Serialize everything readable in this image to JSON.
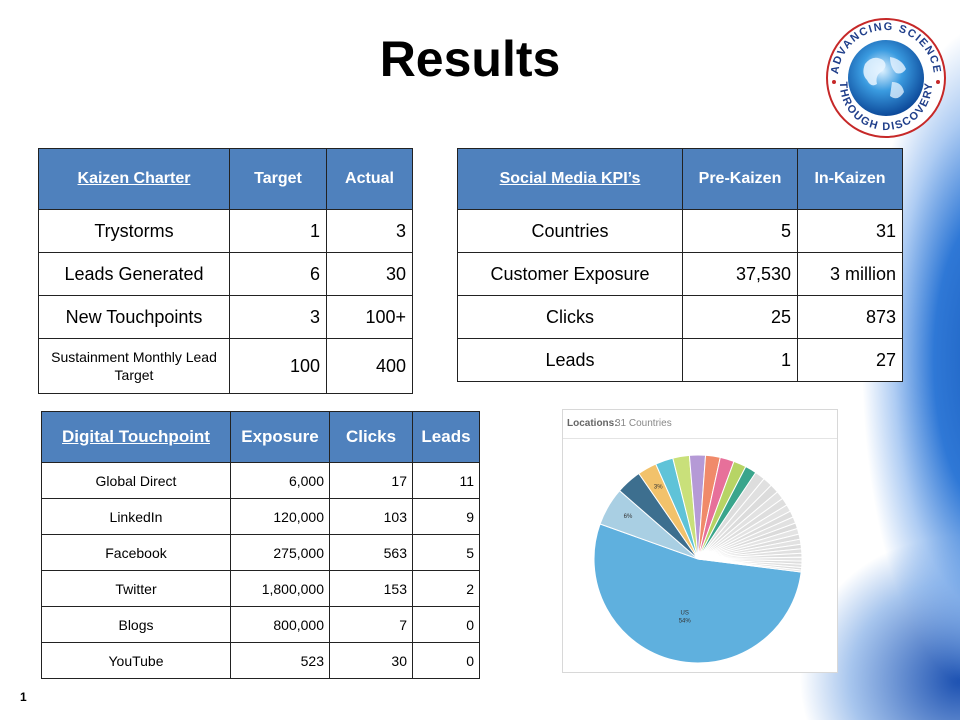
{
  "slide": {
    "title": "Results",
    "page_number": "1",
    "seal_text": "ADVANCING SCIENCE THROUGH DISCOVERY"
  },
  "kaizen_table": {
    "headers": [
      "Kaizen Charter",
      "Target",
      "Actual"
    ],
    "rows": [
      [
        "Trystorms",
        "1",
        "3"
      ],
      [
        "Leads Generated",
        "6",
        "30"
      ],
      [
        "New Touchpoints",
        "3",
        "100+"
      ],
      [
        "Sustainment Monthly Lead Target",
        "100",
        "400"
      ]
    ]
  },
  "social_table": {
    "headers": [
      "Social Media KPI’s",
      "Pre-Kaizen",
      "In-Kaizen"
    ],
    "rows": [
      [
        "Countries",
        "5",
        "31"
      ],
      [
        "Customer Exposure",
        "37,530",
        "3 million"
      ],
      [
        "Clicks",
        "25",
        "873"
      ],
      [
        "Leads",
        "1",
        "27"
      ]
    ]
  },
  "digital_table": {
    "headers": [
      "Digital Touchpoint",
      "Exposure",
      "Clicks",
      "Leads"
    ],
    "rows": [
      [
        "Global Direct",
        "6,000",
        "17",
        "11"
      ],
      [
        "LinkedIn",
        "120,000",
        "103",
        "9"
      ],
      [
        "Facebook",
        "275,000",
        "563",
        "5"
      ],
      [
        "Twitter",
        "1,800,000",
        "153",
        "2"
      ],
      [
        "Blogs",
        "800,000",
        "7",
        "0"
      ],
      [
        "YouTube",
        "523",
        "30",
        "0"
      ]
    ]
  },
  "chart_data": {
    "type": "pie",
    "header_label": "Locations:",
    "header_value": "31 Countries",
    "slices": [
      {
        "label": "US 54%",
        "value": 54,
        "color": "#5fb0de"
      },
      {
        "label": "6%",
        "value": 6,
        "color": "#a9cfe3"
      },
      {
        "label": "",
        "value": 4,
        "color": "#3d6f8f"
      },
      {
        "label": "3%",
        "value": 3,
        "color": "#f2c26b"
      },
      {
        "label": "",
        "value": 2.8,
        "color": "#5fc3d8"
      },
      {
        "label": "",
        "value": 2.6,
        "color": "#c9e07a"
      },
      {
        "label": "",
        "value": 2.5,
        "color": "#b59ad6"
      },
      {
        "label": "",
        "value": 2.3,
        "color": "#f08a6a"
      },
      {
        "label": "",
        "value": 2.2,
        "color": "#e7709a"
      },
      {
        "label": "",
        "value": 2,
        "color": "#b7d465"
      },
      {
        "label": "",
        "value": 1.8,
        "color": "#3aa58c"
      },
      {
        "label": "",
        "value": 1.6,
        "color": "#dddddd"
      },
      {
        "label": "",
        "value": 1.5,
        "color": "#e0e0e0"
      },
      {
        "label": "",
        "value": 1.4,
        "color": "#dcdcdc"
      },
      {
        "label": "",
        "value": 1.3,
        "color": "#e2e2e2"
      },
      {
        "label": "",
        "value": 1.2,
        "color": "#dedede"
      },
      {
        "label": "",
        "value": 1.1,
        "color": "#e3e3e3"
      },
      {
        "label": "",
        "value": 1,
        "color": "#dddddd"
      },
      {
        "label": "",
        "value": 1,
        "color": "#e1e1e1"
      },
      {
        "label": "",
        "value": 0.9,
        "color": "#dbdbdb"
      },
      {
        "label": "",
        "value": 0.9,
        "color": "#e4e4e4"
      },
      {
        "label": "",
        "value": 0.8,
        "color": "#dddddd"
      },
      {
        "label": "",
        "value": 0.8,
        "color": "#e2e2e2"
      },
      {
        "label": "",
        "value": 0.7,
        "color": "#dcdcdc"
      },
      {
        "label": "",
        "value": 0.7,
        "color": "#e0e0e0"
      },
      {
        "label": "",
        "value": 0.6,
        "color": "#dedede"
      },
      {
        "label": "",
        "value": 0.6,
        "color": "#e3e3e3"
      },
      {
        "label": "",
        "value": 0.5,
        "color": "#dddddd"
      },
      {
        "label": "",
        "value": 0.5,
        "color": "#e1e1e1"
      },
      {
        "label": "",
        "value": 0.4,
        "color": "#dcdcdc"
      },
      {
        "label": "",
        "value": 0.3,
        "color": "#e2e2e2"
      }
    ]
  }
}
